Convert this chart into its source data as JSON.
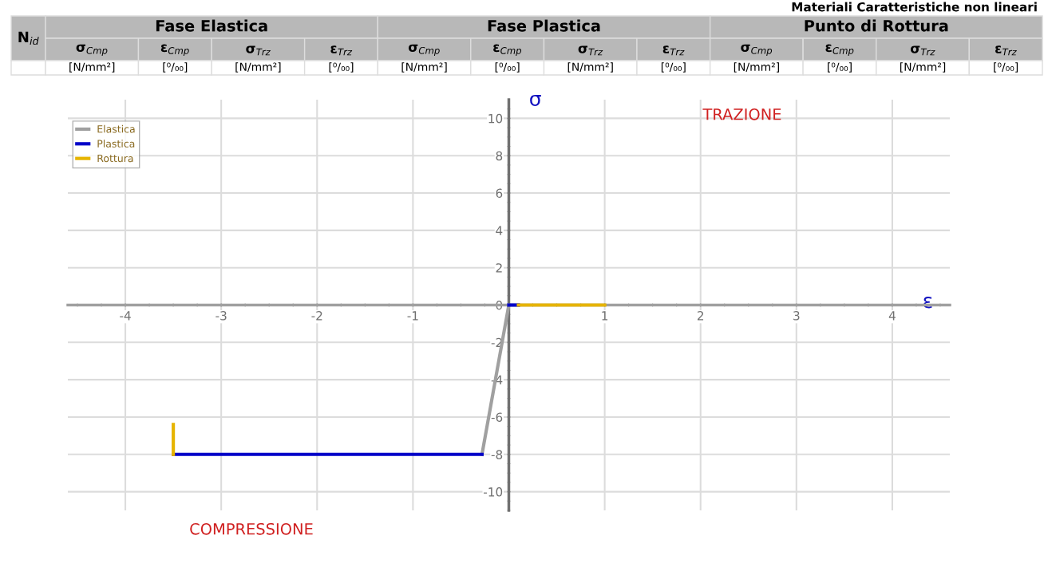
{
  "chart_data": {
    "type": "line",
    "title": "Materiali Caratteristiche non lineari",
    "xlabel": "ε",
    "ylabel": "σ",
    "xlim": [
      -4.6,
      4.6
    ],
    "ylim": [
      -11,
      11
    ],
    "xticks": [
      -4,
      -3,
      -2,
      -1,
      1,
      2,
      3,
      4
    ],
    "yticks": [
      -10,
      -8,
      -6,
      -4,
      -2,
      0,
      2,
      4,
      6,
      8,
      10
    ],
    "grid": true,
    "legend": "top left",
    "marker": "none",
    "line_style": "solid",
    "series": [
      {
        "name": "Elastica",
        "color": "#a0a0a0",
        "x": [
          0,
          -0.28
        ],
        "values": [
          0,
          -8
        ]
      },
      {
        "name": "Plastica",
        "color": "#0000c8",
        "x": [
          -0.28,
          -3.5
        ],
        "values": [
          -8,
          -8
        ]
      },
      {
        "color": "#0000c8",
        "x": [
          0,
          0.1
        ],
        "values": [
          0,
          0
        ]
      },
      {
        "name": "Rottura",
        "color": "#e6b400",
        "x": [
          -3.5,
          -3.5
        ],
        "values": [
          -8,
          -6.4
        ]
      },
      {
        "color": "#e6b400",
        "x": [
          0.1,
          1
        ],
        "values": [
          0,
          0
        ]
      }
    ],
    "annotations": [
      "TRAZIONE",
      "COMPRESSIONE",
      "N$_{id}$",
      "Fase Elastica",
      "Fase Plastica",
      "Punto di Rottura",
      "σ$_{Cmp}$",
      "ε$_{Cmp}$",
      "σ$_{Trz}$",
      "ε$_{Trz}$",
      "σ$_{Cmp}$",
      "ε$_{Cmp}$",
      "σ$_{Trz}$",
      "ε$_{Trz}$",
      "σ$_{Cmp}$",
      "ε$_{Cmp}$",
      "σ$_{Trz}$",
      "ε$_{Trz}$",
      "[N/mm²]",
      "[⁰/₀₀]",
      "[N/mm²]",
      "[⁰/₀₀]",
      "[N/mm²]",
      "[⁰/₀₀]",
      "[N/mm²]",
      "[⁰/₀₀]",
      "[N/mm²]",
      "[⁰/₀₀]",
      "[N/mm²]",
      "[⁰/₀₀]"
    ]
  }
}
